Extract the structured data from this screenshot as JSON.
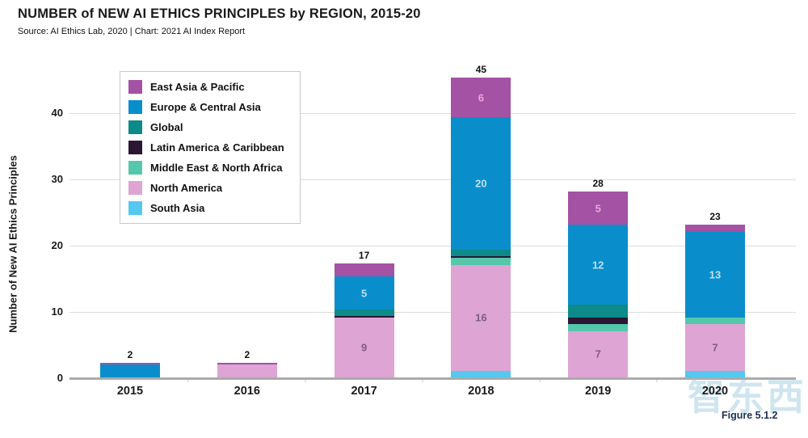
{
  "title": "NUMBER of NEW AI ETHICS PRINCIPLES by REGION, 2015-20",
  "source_line": "Source: AI Ethics Lab, 2020 | Chart: 2021 AI Index Report",
  "figure_label": "Figure 5.1.2",
  "watermark": "智东西",
  "y_axis": {
    "title": "Number of New AI Ethics Principles",
    "ticks": [
      0,
      10,
      20,
      30,
      40
    ],
    "max": 45,
    "gridline_color": "#dcdcdc",
    "baseline_color": "#ababab"
  },
  "legend": [
    {
      "name": "East Asia & Pacific",
      "color": "#a352a4"
    },
    {
      "name": "Europe & Central Asia",
      "color": "#0a8ecb"
    },
    {
      "name": "Global",
      "color": "#0d8a8a"
    },
    {
      "name": "Latin America & Caribbean",
      "color": "#2b1733"
    },
    {
      "name": "Middle East & North Africa",
      "color": "#55c8ab"
    },
    {
      "name": "North America",
      "color": "#dda4d4"
    },
    {
      "name": "South Asia",
      "color": "#55c8ef"
    }
  ],
  "label_colors": {
    "East Asia & Pacific": "#e9a8dc",
    "Europe & Central Asia": "#bfe0f2",
    "Global": "#ffffff",
    "Latin America & Caribbean": "#ffffff",
    "Middle East & North Africa": "#ffffff",
    "North America": "#7d5f7f",
    "South Asia": "#ffffff"
  },
  "chart_data": {
    "type": "bar",
    "stacked": true,
    "title": "NUMBER of NEW AI ETHICS PRINCIPLES by REGION, 2015-20",
    "xlabel": "",
    "ylabel": "Number of New AI Ethics Principles",
    "ylim": [
      0,
      45
    ],
    "grid": true,
    "legend_position": "top-left",
    "categories": [
      "2015",
      "2016",
      "2017",
      "2018",
      "2019",
      "2020"
    ],
    "totals": [
      2,
      2,
      17,
      45,
      28,
      23
    ],
    "series": [
      {
        "name": "East Asia & Pacific",
        "values": [
          0,
          0,
          2,
          6,
          5,
          1
        ]
      },
      {
        "name": "Europe & Central Asia",
        "values": [
          2,
          0,
          5,
          20,
          12,
          13
        ]
      },
      {
        "name": "Global",
        "values": [
          0,
          0,
          1,
          1,
          2,
          0
        ]
      },
      {
        "name": "Latin America & Caribbean",
        "values": [
          0,
          0,
          0,
          0,
          1,
          0
        ]
      },
      {
        "name": "Middle East & North Africa",
        "values": [
          0,
          0,
          0,
          1,
          1,
          1
        ]
      },
      {
        "name": "North America",
        "values": [
          0,
          2,
          9,
          16,
          7,
          7
        ]
      },
      {
        "name": "South Asia",
        "values": [
          0,
          0,
          0,
          1,
          0,
          1
        ]
      }
    ],
    "stack_order_bottom_to_top": [
      "South Asia",
      "North America",
      "Middle East & North Africa",
      "Latin America & Caribbean",
      "Global",
      "Europe & Central Asia",
      "East Asia & Pacific"
    ],
    "zero_value_hairlines": [
      {
        "region": "East Asia & Pacific",
        "years": [
          "2015",
          "2016"
        ]
      },
      {
        "region": "Latin America & Caribbean",
        "years": [
          "2017",
          "2018"
        ]
      }
    ],
    "inside_label_min_value": 5
  }
}
